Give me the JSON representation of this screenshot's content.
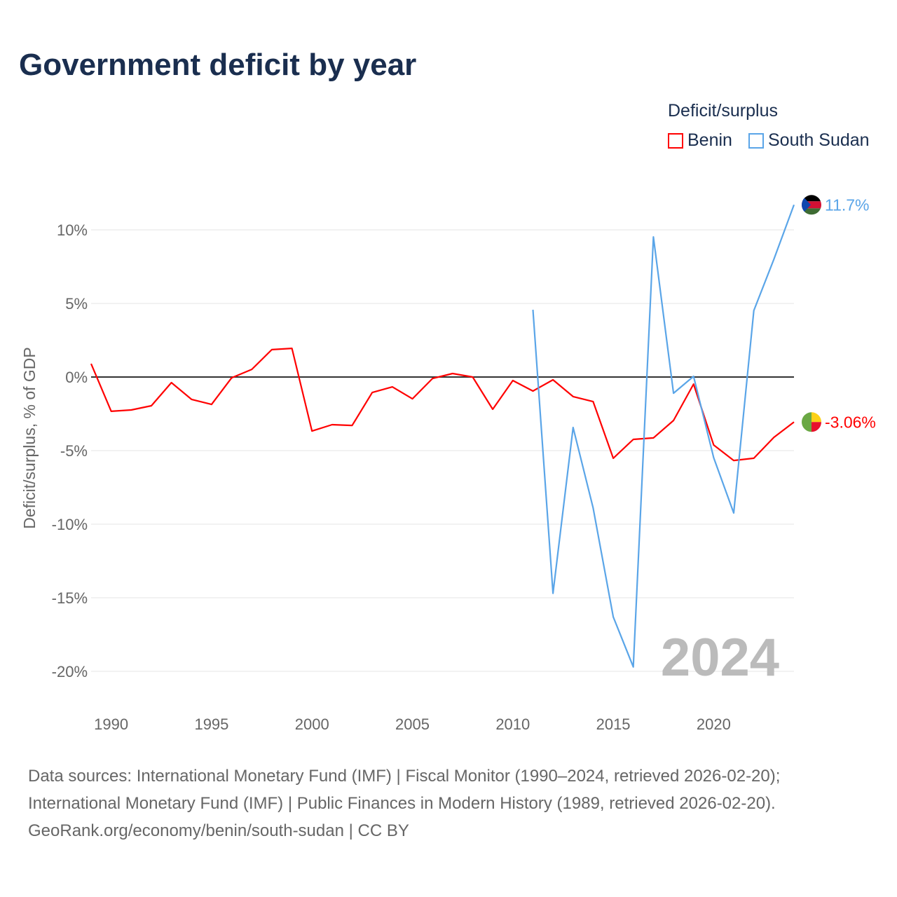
{
  "chart_data": {
    "type": "line",
    "title": "Government deficit by year",
    "ylabel": "Deficit/surplus, % of GDP",
    "xlabel": "",
    "ylim": [
      -20,
      10
    ],
    "xlim": [
      1989,
      2024
    ],
    "yticks": [
      10,
      5,
      0,
      -5,
      -10,
      -15,
      -20
    ],
    "ytick_labels": [
      "10%",
      "5%",
      "0%",
      "-5%",
      "-10%",
      "-15%",
      "-20%"
    ],
    "xticks": [
      1990,
      1995,
      2000,
      2005,
      2010,
      2015,
      2020
    ],
    "xtick_labels": [
      "1990",
      "1995",
      "2000",
      "2005",
      "2010",
      "2015",
      "2020"
    ],
    "grid": true,
    "legend_title": "Deficit/surplus",
    "legend_position": "top-right",
    "year_watermark": "2024",
    "series": [
      {
        "name": "Benin",
        "color": "#ff0000",
        "end_label": "-3.06%",
        "x": [
          1989,
          1990,
          1991,
          1992,
          1993,
          1994,
          1995,
          1996,
          1997,
          1998,
          1999,
          2000,
          2001,
          2002,
          2003,
          2004,
          2005,
          2006,
          2007,
          2008,
          2009,
          2010,
          2011,
          2012,
          2013,
          2014,
          2015,
          2016,
          2017,
          2018,
          2019,
          2020,
          2021,
          2022,
          2023,
          2024
        ],
        "values": [
          0.9,
          -2.33,
          -2.24,
          -1.95,
          -0.38,
          -1.52,
          -1.86,
          -0.05,
          0.52,
          1.86,
          1.95,
          -3.67,
          -3.24,
          -3.29,
          -1.05,
          -0.67,
          -1.48,
          -0.1,
          0.24,
          0,
          -2.19,
          -0.24,
          -0.95,
          -0.19,
          -1.33,
          -1.67,
          -5.52,
          -4.24,
          -4.14,
          -2.95,
          -0.48,
          -4.62,
          -5.67,
          -5.52,
          -4.1,
          -3.06
        ]
      },
      {
        "name": "South Sudan",
        "color": "#5aa5e8",
        "end_label": "11.7%",
        "x": [
          2011,
          2012,
          2013,
          2014,
          2015,
          2016,
          2017,
          2018,
          2019,
          2020,
          2021,
          2022,
          2023,
          2024
        ],
        "values": [
          4.57,
          -14.7,
          -3.43,
          -8.9,
          -16.3,
          -19.7,
          9.52,
          -1.1,
          0.05,
          -5.48,
          -9.24,
          4.52,
          8.0,
          11.7
        ]
      }
    ]
  },
  "footer": {
    "line1": "Data sources: International Monetary Fund (IMF) | Fiscal Monitor (1990–2024, retrieved 2026-02-20);",
    "line2": "International Monetary Fund (IMF) | Public Finances in Modern History (1989, retrieved 2026-02-20).",
    "line3": "GeoRank.org/economy/benin/south-sudan | CC BY"
  }
}
